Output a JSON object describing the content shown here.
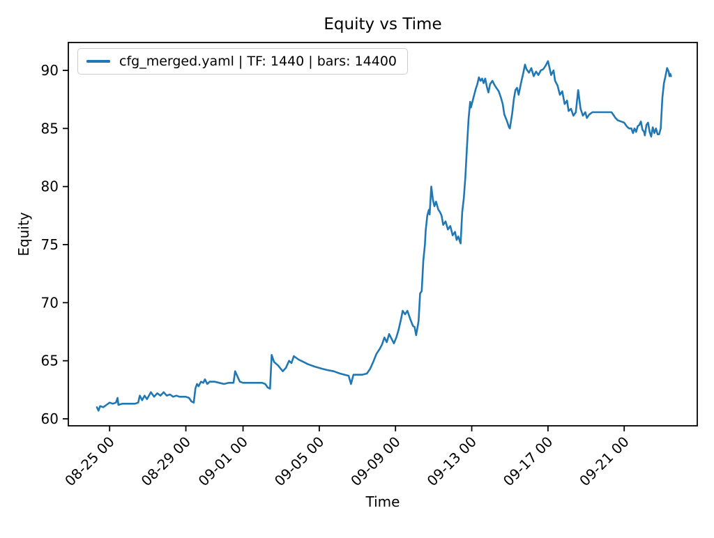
{
  "chart_data": {
    "type": "line",
    "title": "Equity vs Time",
    "xlabel": "Time",
    "ylabel": "Equity",
    "grid": false,
    "legend_position": "upper left",
    "x_tick_rotation": 45,
    "line_color": "#1f77b4",
    "x_ticks": [
      "08-25 00",
      "08-29 00",
      "09-01 00",
      "09-05 00",
      "09-09 00",
      "09-13 00",
      "09-17 00",
      "09-21 00"
    ],
    "y_ticks": [
      60,
      65,
      70,
      75,
      80,
      85,
      90
    ],
    "x_range": [
      "08-22 20",
      "09-24 20"
    ],
    "y_range": [
      59.4,
      92.4
    ],
    "series": [
      {
        "name": "cfg_merged.yaml | TF: 1440 | bars: 14400",
        "color": "#1f77b4",
        "points": [
          [
            "08-24 08",
            61.0
          ],
          [
            "08-24 10",
            60.7
          ],
          [
            "08-24 12",
            61.1
          ],
          [
            "08-24 16",
            61.0
          ],
          [
            "08-24 20",
            61.2
          ],
          [
            "08-25 00",
            61.4
          ],
          [
            "08-25 04",
            61.3
          ],
          [
            "08-25 08",
            61.4
          ],
          [
            "08-25 10",
            61.8
          ],
          [
            "08-25 11",
            61.2
          ],
          [
            "08-25 16",
            61.3
          ],
          [
            "08-25 20",
            61.3
          ],
          [
            "08-26 02",
            61.3
          ],
          [
            "08-26 08",
            61.3
          ],
          [
            "08-26 12",
            61.4
          ],
          [
            "08-26 14",
            62.0
          ],
          [
            "08-26 17",
            61.6
          ],
          [
            "08-26 20",
            62.0
          ],
          [
            "08-26 23",
            61.7
          ],
          [
            "08-27 04",
            62.3
          ],
          [
            "08-27 08",
            61.9
          ],
          [
            "08-27 12",
            62.2
          ],
          [
            "08-27 16",
            62.0
          ],
          [
            "08-27 20",
            62.3
          ],
          [
            "08-28 00",
            62.0
          ],
          [
            "08-28 04",
            62.1
          ],
          [
            "08-28 08",
            61.9
          ],
          [
            "08-28 12",
            62.0
          ],
          [
            "08-28 16",
            61.9
          ],
          [
            "08-28 20",
            61.9
          ],
          [
            "08-29 00",
            61.9
          ],
          [
            "08-29 04",
            61.8
          ],
          [
            "08-29 07",
            61.5
          ],
          [
            "08-29 10",
            61.4
          ],
          [
            "08-29 12",
            62.6
          ],
          [
            "08-29 14",
            63.0
          ],
          [
            "08-29 16",
            62.8
          ],
          [
            "08-29 19",
            63.2
          ],
          [
            "08-29 22",
            63.1
          ],
          [
            "08-30 00",
            63.4
          ],
          [
            "08-30 03",
            63.0
          ],
          [
            "08-30 06",
            63.2
          ],
          [
            "08-30 12",
            63.2
          ],
          [
            "08-30 18",
            63.1
          ],
          [
            "08-31 00",
            63.0
          ],
          [
            "08-31 06",
            63.1
          ],
          [
            "08-31 12",
            63.1
          ],
          [
            "08-31 14",
            64.1
          ],
          [
            "08-31 16",
            63.8
          ],
          [
            "08-31 20",
            63.2
          ],
          [
            "09-01 00",
            63.1
          ],
          [
            "09-01 08",
            63.1
          ],
          [
            "09-01 16",
            63.1
          ],
          [
            "09-02 00",
            63.1
          ],
          [
            "09-02 04",
            63.0
          ],
          [
            "09-02 07",
            62.7
          ],
          [
            "09-02 10",
            62.6
          ],
          [
            "09-02 12",
            65.5
          ],
          [
            "09-02 15",
            64.9
          ],
          [
            "09-02 20",
            64.6
          ],
          [
            "09-03 02",
            64.1
          ],
          [
            "09-03 06",
            64.4
          ],
          [
            "09-03 10",
            65.0
          ],
          [
            "09-03 13",
            64.8
          ],
          [
            "09-03 16",
            65.4
          ],
          [
            "09-03 22",
            65.1
          ],
          [
            "09-04 04",
            64.9
          ],
          [
            "09-04 10",
            64.7
          ],
          [
            "09-04 18",
            64.5
          ],
          [
            "09-05 04",
            64.3
          ],
          [
            "09-05 10",
            64.2
          ],
          [
            "09-05 18",
            64.1
          ],
          [
            "09-06 02",
            63.9
          ],
          [
            "09-06 08",
            63.8
          ],
          [
            "09-06 13",
            63.7
          ],
          [
            "09-06 16",
            63.0
          ],
          [
            "09-06 19",
            63.8
          ],
          [
            "09-07 00",
            63.8
          ],
          [
            "09-07 06",
            63.8
          ],
          [
            "09-07 12",
            63.9
          ],
          [
            "09-07 16",
            64.3
          ],
          [
            "09-07 20",
            64.9
          ],
          [
            "09-08 00",
            65.6
          ],
          [
            "09-08 04",
            66.0
          ],
          [
            "09-08 07",
            66.4
          ],
          [
            "09-08 10",
            67.0
          ],
          [
            "09-08 13",
            66.6
          ],
          [
            "09-08 16",
            67.3
          ],
          [
            "09-08 19",
            66.9
          ],
          [
            "09-08 22",
            66.5
          ],
          [
            "09-09 01",
            67.0
          ],
          [
            "09-09 04",
            67.7
          ],
          [
            "09-09 07",
            68.6
          ],
          [
            "09-09 09",
            69.3
          ],
          [
            "09-09 12",
            69.0
          ],
          [
            "09-09 15",
            69.3
          ],
          [
            "09-09 19",
            68.5
          ],
          [
            "09-09 22",
            68.0
          ],
          [
            "09-10 00",
            67.9
          ],
          [
            "09-10 02",
            67.2
          ],
          [
            "09-10 05",
            68.4
          ],
          [
            "09-10 07",
            70.8
          ],
          [
            "09-10 09",
            71.0
          ],
          [
            "09-10 11",
            73.6
          ],
          [
            "09-10 13",
            75.0
          ],
          [
            "09-10 14",
            76.2
          ],
          [
            "09-10 16",
            77.5
          ],
          [
            "09-10 18",
            78.0
          ],
          [
            "09-10 19",
            77.6
          ],
          [
            "09-10 21",
            80.0
          ],
          [
            "09-10 23",
            78.9
          ],
          [
            "09-11 01",
            78.3
          ],
          [
            "09-11 03",
            78.7
          ],
          [
            "09-11 06",
            78.0
          ],
          [
            "09-11 08",
            77.8
          ],
          [
            "09-11 10",
            77.5
          ],
          [
            "09-11 12",
            76.7
          ],
          [
            "09-11 15",
            77.0
          ],
          [
            "09-11 18",
            76.3
          ],
          [
            "09-11 21",
            76.6
          ],
          [
            "09-12 00",
            75.8
          ],
          [
            "09-12 03",
            76.1
          ],
          [
            "09-12 05",
            75.4
          ],
          [
            "09-12 07",
            75.7
          ],
          [
            "09-12 10",
            75.1
          ],
          [
            "09-12 12",
            77.8
          ],
          [
            "09-12 14",
            79.0
          ],
          [
            "09-12 16",
            80.8
          ],
          [
            "09-12 18",
            83.4
          ],
          [
            "09-12 20",
            85.8
          ],
          [
            "09-12 22",
            87.3
          ],
          [
            "09-12 23",
            86.8
          ],
          [
            "09-13 02",
            87.6
          ],
          [
            "09-13 05",
            88.4
          ],
          [
            "09-13 07",
            88.8
          ],
          [
            "09-13 09",
            89.4
          ],
          [
            "09-13 11",
            89.1
          ],
          [
            "09-13 13",
            89.3
          ],
          [
            "09-13 15",
            88.9
          ],
          [
            "09-13 17",
            89.3
          ],
          [
            "09-13 19",
            88.6
          ],
          [
            "09-13 21",
            88.1
          ],
          [
            "09-13 23",
            88.8
          ],
          [
            "09-14 02",
            89.1
          ],
          [
            "09-14 05",
            88.7
          ],
          [
            "09-14 08",
            88.4
          ],
          [
            "09-14 10",
            88.2
          ],
          [
            "09-14 13",
            87.6
          ],
          [
            "09-14 15",
            87.1
          ],
          [
            "09-14 17",
            86.2
          ],
          [
            "09-14 20",
            85.7
          ],
          [
            "09-14 23",
            85.1
          ],
          [
            "09-15 00",
            85.0
          ],
          [
            "09-15 03",
            86.3
          ],
          [
            "09-15 05",
            87.5
          ],
          [
            "09-15 07",
            88.3
          ],
          [
            "09-15 09",
            88.5
          ],
          [
            "09-15 11",
            87.9
          ],
          [
            "09-15 14",
            88.9
          ],
          [
            "09-15 17",
            89.8
          ],
          [
            "09-15 19",
            90.5
          ],
          [
            "09-15 21",
            90.1
          ],
          [
            "09-16 00",
            89.8
          ],
          [
            "09-16 03",
            90.2
          ],
          [
            "09-16 06",
            89.5
          ],
          [
            "09-16 09",
            89.9
          ],
          [
            "09-16 12",
            89.6
          ],
          [
            "09-16 15",
            90.0
          ],
          [
            "09-16 18",
            90.1
          ],
          [
            "09-16 21",
            90.4
          ],
          [
            "09-17 00",
            90.8
          ],
          [
            "09-17 02",
            90.2
          ],
          [
            "09-17 04",
            89.6
          ],
          [
            "09-17 07",
            90.0
          ],
          [
            "09-17 09",
            89.1
          ],
          [
            "09-17 12",
            88.7
          ],
          [
            "09-17 15",
            87.9
          ],
          [
            "09-17 18",
            88.2
          ],
          [
            "09-17 21",
            87.1
          ],
          [
            "09-18 00",
            87.4
          ],
          [
            "09-18 02",
            86.5
          ],
          [
            "09-18 05",
            86.7
          ],
          [
            "09-18 08",
            86.1
          ],
          [
            "09-18 11",
            86.4
          ],
          [
            "09-18 14",
            88.3
          ],
          [
            "09-18 17",
            86.7
          ],
          [
            "09-18 20",
            86.1
          ],
          [
            "09-18 23",
            86.4
          ],
          [
            "09-19 01",
            85.9
          ],
          [
            "09-19 04",
            86.2
          ],
          [
            "09-19 08",
            86.4
          ],
          [
            "09-19 16",
            86.4
          ],
          [
            "09-20 00",
            86.4
          ],
          [
            "09-20 08",
            86.4
          ],
          [
            "09-20 10",
            86.2
          ],
          [
            "09-20 13",
            85.9
          ],
          [
            "09-20 16",
            85.7
          ],
          [
            "09-20 20",
            85.6
          ],
          [
            "09-21 00",
            85.5
          ],
          [
            "09-21 03",
            85.2
          ],
          [
            "09-21 06",
            85.0
          ],
          [
            "09-21 09",
            85.0
          ],
          [
            "09-21 11",
            84.6
          ],
          [
            "09-21 13",
            85.0
          ],
          [
            "09-21 15",
            84.7
          ],
          [
            "09-21 17",
            85.2
          ],
          [
            "09-21 19",
            85.3
          ],
          [
            "09-21 21",
            85.6
          ],
          [
            "09-21 23",
            84.9
          ],
          [
            "09-22 01",
            84.7
          ],
          [
            "09-22 02",
            84.4
          ],
          [
            "09-22 04",
            85.3
          ],
          [
            "09-22 06",
            85.5
          ],
          [
            "09-22 08",
            84.7
          ],
          [
            "09-22 10",
            84.3
          ],
          [
            "09-22 12",
            85.1
          ],
          [
            "09-22 14",
            84.6
          ],
          [
            "09-22 16",
            85.0
          ],
          [
            "09-22 18",
            84.5
          ],
          [
            "09-22 20",
            84.5
          ],
          [
            "09-22 22",
            85.0
          ],
          [
            "09-23 00",
            87.6
          ],
          [
            "09-23 02",
            88.9
          ],
          [
            "09-23 04",
            89.5
          ],
          [
            "09-23 06",
            90.2
          ],
          [
            "09-23 08",
            89.9
          ],
          [
            "09-23 09",
            89.5
          ],
          [
            "09-23 10",
            89.7
          ],
          [
            "09-23 11",
            89.5
          ]
        ]
      }
    ]
  }
}
